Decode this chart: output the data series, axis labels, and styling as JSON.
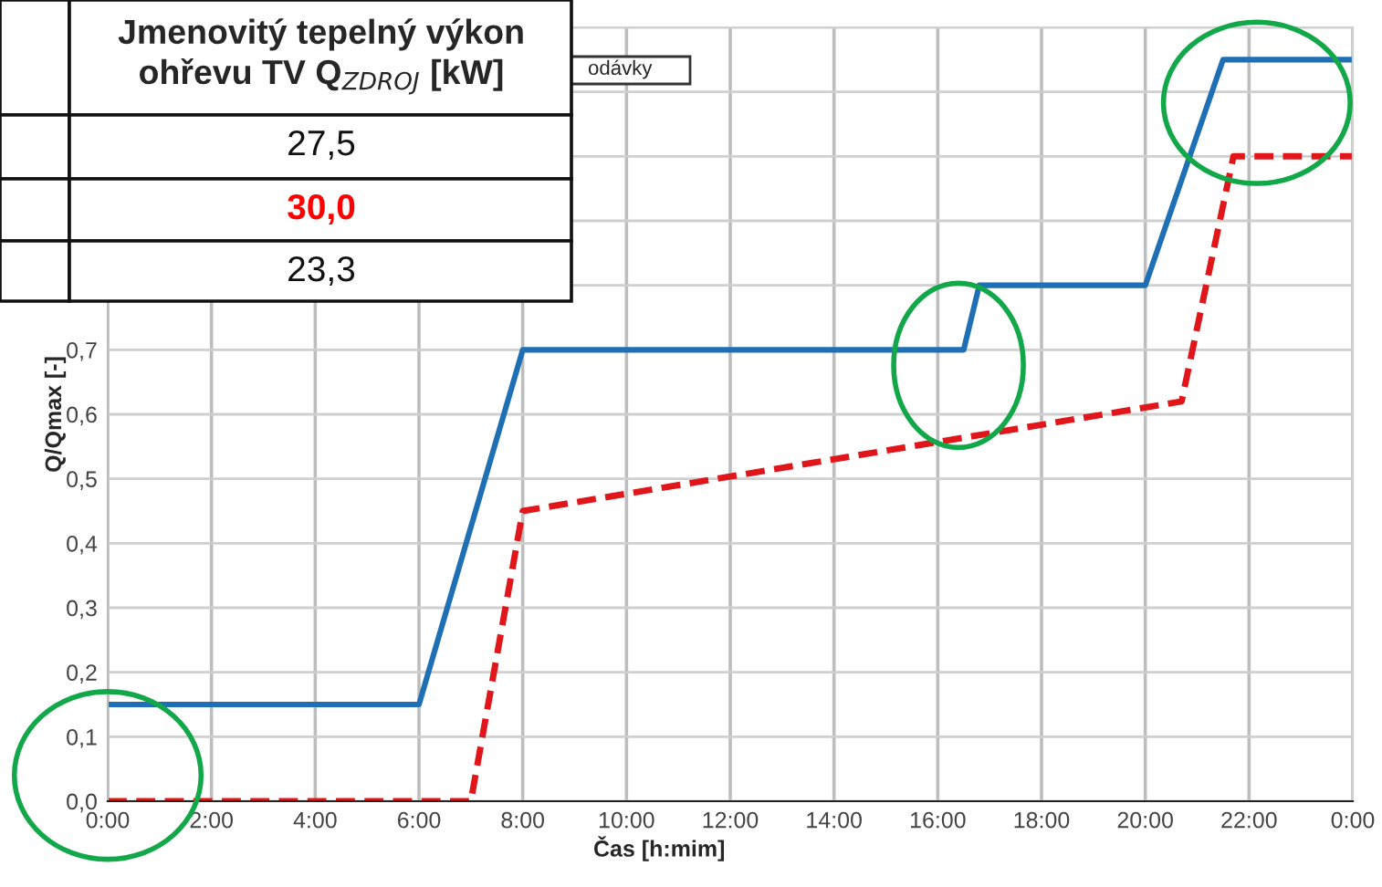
{
  "chart_data": {
    "type": "line",
    "xlabel": "Čas [h:mim]",
    "ylabel": "Q/Qmax [-]",
    "series": [
      {
        "color": "#1f6fb5",
        "line_style": "solid",
        "x": [
          0,
          6,
          8,
          16.5,
          16.8,
          20,
          21.5,
          24
        ],
        "values": [
          0.15,
          0.15,
          0.7,
          0.7,
          0.8,
          0.8,
          1.15,
          1.15
        ]
      },
      {
        "color": "#e0161b",
        "line_style": "dashed",
        "x": [
          0,
          7,
          8,
          20.7,
          21.7,
          24
        ],
        "values": [
          0,
          0,
          0.45,
          0.62,
          1.0,
          1.0
        ]
      }
    ],
    "xlim": [
      0,
      24
    ],
    "ylim": [
      0,
      1.2
    ],
    "xticks": [
      {
        "value": 0,
        "label": "0:00"
      },
      {
        "value": 2,
        "label": "2:00"
      },
      {
        "value": 4,
        "label": "4:00"
      },
      {
        "value": 6,
        "label": "6:00"
      },
      {
        "value": 8,
        "label": "8:00"
      },
      {
        "value": 10,
        "label": "10:00"
      },
      {
        "value": 12,
        "label": "12:00"
      },
      {
        "value": 14,
        "label": "14:00"
      },
      {
        "value": 16,
        "label": "16:00"
      },
      {
        "value": 18,
        "label": "18:00"
      },
      {
        "value": 20,
        "label": "20:00"
      },
      {
        "value": 22,
        "label": "22:00"
      },
      {
        "value": 24,
        "label": "0:00"
      }
    ],
    "yticks": [
      {
        "value": 0,
        "label": "0,0"
      },
      {
        "value": 0.1,
        "label": "0,1"
      },
      {
        "value": 0.2,
        "label": "0,2"
      },
      {
        "value": 0.3,
        "label": "0,3"
      },
      {
        "value": 0.4,
        "label": "0,4"
      },
      {
        "value": 0.5,
        "label": "0,5"
      },
      {
        "value": 0.6,
        "label": "0,6"
      },
      {
        "value": 0.7,
        "label": "0,7"
      },
      {
        "value": 0.8,
        "label": null
      },
      {
        "value": 0.9,
        "label": null
      },
      {
        "value": 1.0,
        "label": null
      },
      {
        "value": 1.1,
        "label": null
      },
      {
        "value": 1.2,
        "label": null
      }
    ],
    "grid": true,
    "annotations": [
      "odávky",
      "Jmenovitý tepelný výkon ohřevu TV Q$_{ZDROJ}$ [kW]",
      "27,5",
      "30,0",
      "23,3"
    ]
  }
}
